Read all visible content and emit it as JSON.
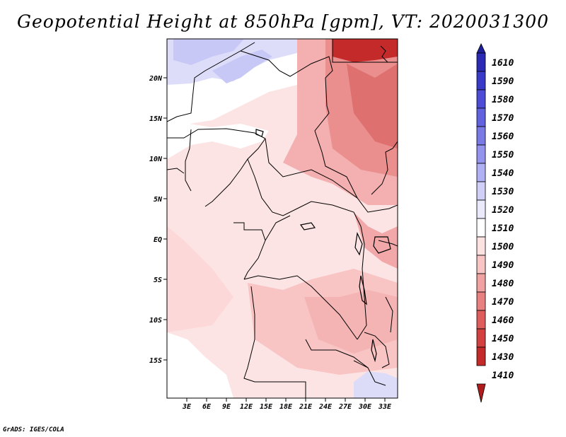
{
  "title": "Geopotential Height at 850hPa [gpm], VT: 2020031300",
  "credit": "GrADS: IGES/COLA",
  "map": {
    "lon_labels": [
      "3E",
      "6E",
      "9E",
      "12E",
      "15E",
      "18E",
      "21E",
      "24E",
      "27E",
      "30E",
      "33E"
    ],
    "lat_labels": [
      "20N",
      "15N",
      "10N",
      "5N",
      "EQ",
      "5S",
      "10S",
      "15S"
    ]
  },
  "colorbar": {
    "labels": [
      "1610",
      "1590",
      "1580",
      "1570",
      "1560",
      "1550",
      "1540",
      "1530",
      "1520",
      "1510",
      "1500",
      "1490",
      "1480",
      "1470",
      "1460",
      "1450",
      "1430",
      "1410"
    ],
    "colors": [
      "#1f1f9c",
      "#2a2ab4",
      "#3a3ac8",
      "#4c4cd6",
      "#6262de",
      "#7a7ae6",
      "#9494ee",
      "#b0b0f4",
      "#cfcff8",
      "#eaeafc",
      "#ffffff",
      "#fde2e2",
      "#f8c4c4",
      "#f0a2a2",
      "#e88080",
      "#de5e5e",
      "#d24040",
      "#c42a2a",
      "#b01c1c"
    ]
  }
}
